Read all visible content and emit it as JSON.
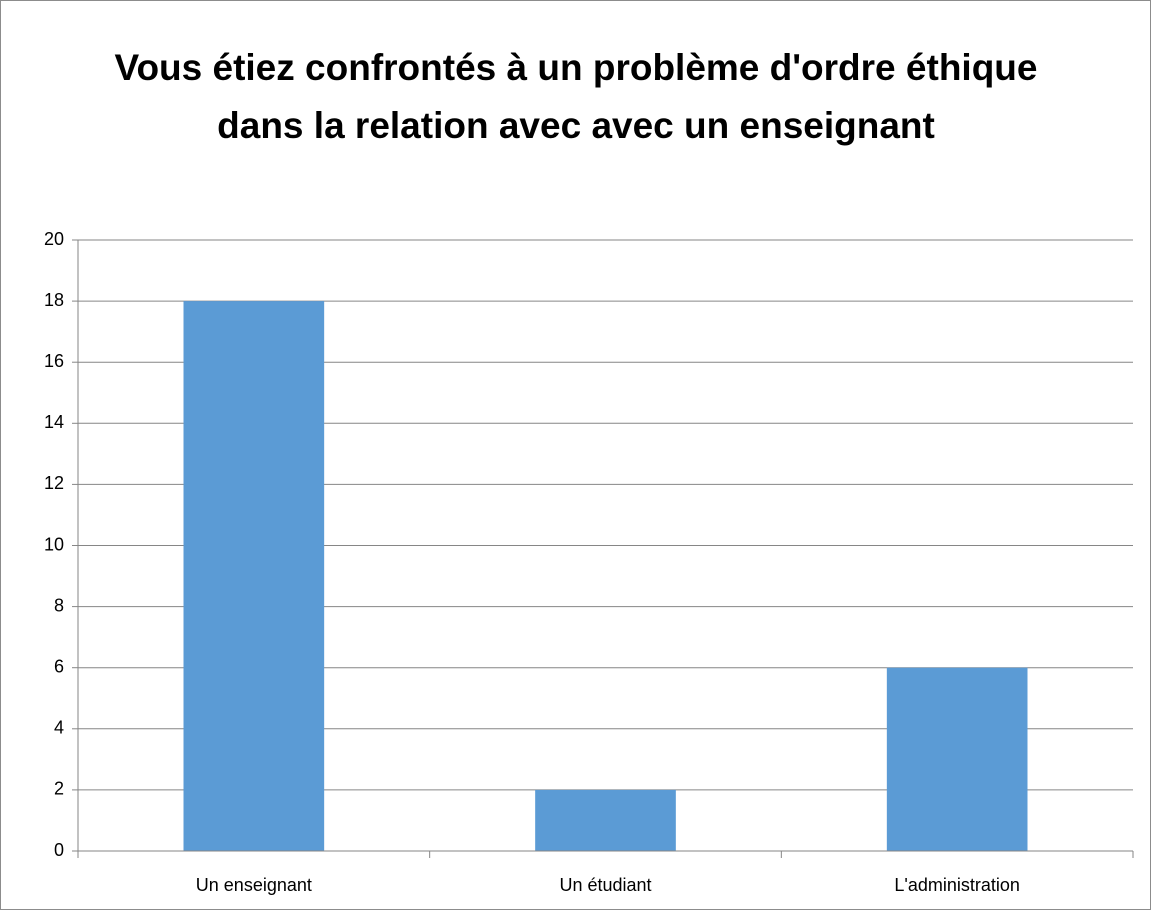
{
  "chart_data": {
    "type": "bar",
    "title": "Vous étiez confrontés à un problème d'ordre éthique dans la relation avec avec un enseignant",
    "categories": [
      "Un enseignant",
      "Un étudiant",
      "L'administration"
    ],
    "values": [
      18,
      2,
      6
    ],
    "color": "#5b9bd5",
    "ylim": [
      0,
      20
    ],
    "yticks": [
      0,
      2,
      4,
      6,
      8,
      10,
      12,
      14,
      16,
      18,
      20
    ],
    "grid": true
  }
}
